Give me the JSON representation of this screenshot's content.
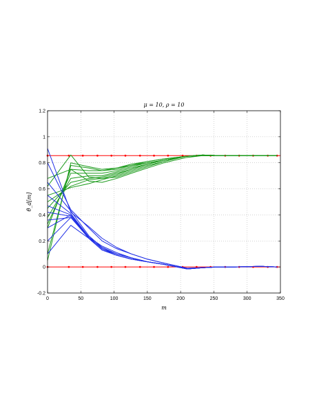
{
  "chart_data": {
    "type": "line",
    "title": "μ = 10, ρ = 10",
    "xlabel": "m",
    "ylabel": "θ̂_d[m]",
    "xlim": [
      0,
      350
    ],
    "ylim": [
      -0.2,
      1.2
    ],
    "xticks": [
      0,
      50,
      100,
      150,
      200,
      250,
      300,
      350
    ],
    "yticks": [
      -0.2,
      0,
      0.2,
      0.4,
      0.6,
      0.8,
      1,
      1.2
    ],
    "xtick_labels": [
      "0",
      "50",
      "100",
      "150",
      "200",
      "250",
      "300",
      "350"
    ],
    "ytick_labels": [
      "-0.2",
      "0",
      "0.2",
      "0.4",
      "0.6",
      "0.8",
      "1",
      "1.2"
    ],
    "grid": true,
    "colors": {
      "reference": "#ff0000",
      "upper": "#1a9a1a",
      "lower": "#1f2ee6"
    },
    "reference_lines": [
      {
        "x": [
          0,
          32,
          53,
          75,
          96,
          117,
          139,
          160,
          181,
          203,
          224,
          245,
          267,
          288,
          309,
          331,
          345
        ],
        "y": 0.855
      },
      {
        "x": [
          0,
          32,
          53,
          75,
          96,
          117,
          139,
          160,
          181,
          203,
          224,
          245,
          267,
          288,
          309,
          331,
          345
        ],
        "y": 0.0
      }
    ],
    "upper_series_x": [
      0,
      35,
      62,
      82,
      104,
      126,
      150,
      175,
      208,
      233,
      256,
      281,
      310,
      345
    ],
    "upper_series": [
      {
        "values": [
          0.05,
          0.8,
          0.77,
          0.75,
          0.76,
          0.79,
          0.81,
          0.83,
          0.85,
          0.855,
          0.855,
          0.855,
          0.855,
          0.855
        ]
      },
      {
        "values": [
          0.1,
          0.78,
          0.76,
          0.74,
          0.76,
          0.78,
          0.81,
          0.83,
          0.85,
          0.855,
          0.855,
          0.855,
          0.855,
          0.855
        ]
      },
      {
        "values": [
          0.3,
          0.75,
          0.74,
          0.74,
          0.75,
          0.78,
          0.8,
          0.82,
          0.85,
          0.86,
          0.856,
          0.855,
          0.855,
          0.855
        ]
      },
      {
        "values": [
          0.33,
          0.72,
          0.72,
          0.72,
          0.74,
          0.77,
          0.8,
          0.82,
          0.85,
          0.86,
          0.856,
          0.855,
          0.855,
          0.855
        ]
      },
      {
        "values": [
          0.38,
          0.68,
          0.7,
          0.7,
          0.73,
          0.76,
          0.79,
          0.82,
          0.85,
          0.86,
          0.856,
          0.855,
          0.855,
          0.855
        ]
      },
      {
        "values": [
          0.45,
          0.65,
          0.68,
          0.69,
          0.72,
          0.75,
          0.79,
          0.82,
          0.85,
          0.86,
          0.856,
          0.855,
          0.855,
          0.855
        ]
      },
      {
        "values": [
          0.5,
          0.62,
          0.67,
          0.68,
          0.71,
          0.75,
          0.79,
          0.82,
          0.85,
          0.86,
          0.856,
          0.855,
          0.855,
          0.855
        ]
      },
      {
        "values": [
          0.55,
          0.61,
          0.64,
          0.67,
          0.7,
          0.74,
          0.78,
          0.81,
          0.85,
          0.855,
          0.855,
          0.855,
          0.855,
          0.855
        ]
      },
      {
        "values": [
          0.62,
          0.86,
          0.69,
          0.68,
          0.69,
          0.73,
          0.77,
          0.81,
          0.85,
          0.86,
          0.856,
          0.855,
          0.855,
          0.855
        ]
      },
      {
        "values": [
          0.68,
          0.75,
          0.66,
          0.65,
          0.68,
          0.72,
          0.76,
          0.8,
          0.84,
          0.855,
          0.855,
          0.855,
          0.855,
          0.855
        ]
      }
    ],
    "lower_series_x": [
      0,
      35,
      62,
      82,
      104,
      126,
      150,
      175,
      210,
      233,
      256,
      281,
      320,
      345
    ],
    "lower_series": [
      {
        "values": [
          0.91,
          0.42,
          0.31,
          0.22,
          0.15,
          0.1,
          0.06,
          0.03,
          -0.01,
          -0.005,
          0.0,
          0.0,
          0.005,
          0.0
        ]
      },
      {
        "values": [
          0.8,
          0.44,
          0.3,
          0.2,
          0.14,
          0.1,
          0.06,
          0.03,
          -0.01,
          -0.006,
          0.0,
          0.0,
          0.005,
          0.0
        ]
      },
      {
        "values": [
          0.65,
          0.43,
          0.24,
          0.15,
          0.1,
          0.07,
          0.04,
          0.02,
          -0.015,
          -0.006,
          0.0,
          0.0,
          0.005,
          0.0
        ]
      },
      {
        "values": [
          0.55,
          0.41,
          0.23,
          0.14,
          0.09,
          0.06,
          0.04,
          0.02,
          -0.015,
          -0.006,
          0.0,
          0.0,
          0.005,
          0.0
        ]
      },
      {
        "values": [
          0.47,
          0.4,
          0.23,
          0.16,
          0.11,
          0.07,
          0.04,
          0.02,
          -0.015,
          -0.006,
          0.0,
          0.0,
          0.005,
          0.0
        ]
      },
      {
        "values": [
          0.42,
          0.39,
          0.22,
          0.15,
          0.1,
          0.07,
          0.04,
          0.02,
          -0.015,
          -0.006,
          0.0,
          0.0,
          0.005,
          0.0
        ]
      },
      {
        "values": [
          0.36,
          0.38,
          0.23,
          0.14,
          0.1,
          0.07,
          0.04,
          0.02,
          -0.015,
          -0.006,
          0.0,
          0.0,
          0.005,
          0.0
        ]
      },
      {
        "values": [
          0.3,
          0.4,
          0.22,
          0.13,
          0.09,
          0.06,
          0.04,
          0.02,
          -0.015,
          -0.006,
          0.0,
          0.0,
          0.005,
          0.0
        ]
      },
      {
        "values": [
          0.2,
          0.38,
          0.22,
          0.13,
          0.09,
          0.06,
          0.04,
          0.02,
          -0.015,
          -0.006,
          0.0,
          0.0,
          0.005,
          0.0
        ]
      },
      {
        "values": [
          0.1,
          0.32,
          0.22,
          0.13,
          0.09,
          0.06,
          0.04,
          0.02,
          -0.015,
          -0.006,
          0.0,
          0.0,
          0.005,
          0.0
        ]
      }
    ]
  }
}
